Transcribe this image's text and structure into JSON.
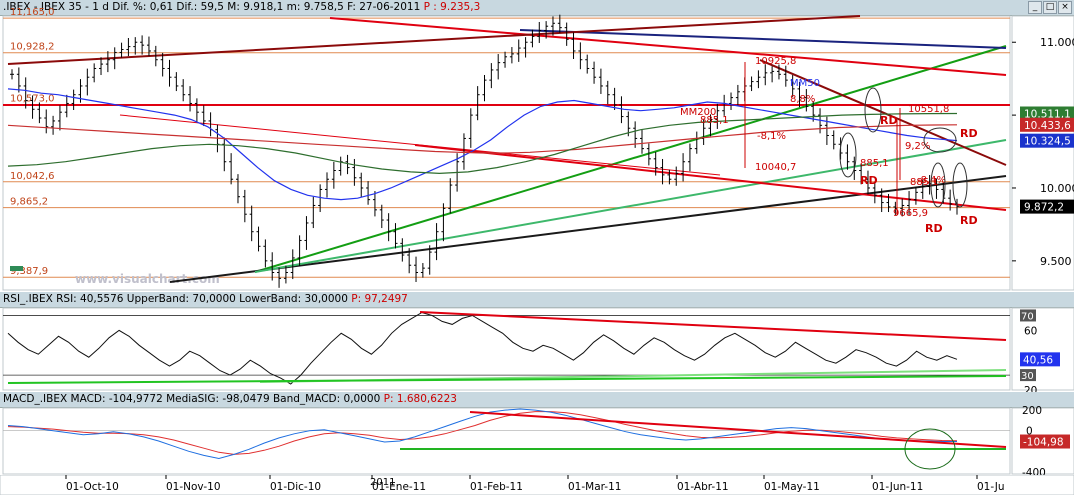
{
  "main_header": {
    "instrument": ".IBEX - IBEX 35 - 1 d Dif. %: 0,61 Dif.: 59,5 M: 9.918,1 m: 9.758,5 F: 27-06-2011",
    "extra": "P : 9.235,3"
  },
  "rsi_header": {
    "text": "RSI_.IBEX RSI: 40,5576 UpperBand: 70,0000 LowerBand: 30,0000",
    "extra": "P: 97,2497"
  },
  "macd_header": {
    "text": "MACD_.IBEX MACD: -104,9772 MediaSIG: -98,0479 Band_MACD: 0,0000",
    "extra": "P: 1.680,6223"
  },
  "window_buttons": [
    "_",
    "□",
    "×"
  ],
  "colors": {
    "pane_bg": "#ffffff",
    "header_bg": "#c8d8e0",
    "price": "#000000",
    "level_line": "#e08a50",
    "red_line": "#e00010",
    "green_line": "#139e13",
    "light_green": "#3db86b",
    "dark_line": "#1a1a1a",
    "blue_line": "#1a33cc",
    "navy_line": "#1a237e",
    "maroon_line": "#8b0a0a",
    "mm50": "#2233ee",
    "mm200": "#c83030",
    "ma_green": "#2e6e2e",
    "rsi_line": "#111111",
    "macd": "#1f6fe0",
    "signal": "#e03030",
    "watermark": "#c0c0cc"
  },
  "chart_data": {
    "type": "ohlc",
    "instrument": "IBEX 35",
    "watermark": "www.visualchart.com",
    "price_axis": {
      "range": [
        9300,
        11180
      ],
      "ticks": [
        {
          "value": 11000,
          "label": "11.000"
        },
        {
          "value": 10500,
          "label": "10.500"
        },
        {
          "value": 10000,
          "label": "10.000"
        },
        {
          "value": 9500,
          "label": "9.500"
        }
      ],
      "value_tags": [
        {
          "value": 10511,
          "label": "10.511,1",
          "bg": "#2e7d32"
        },
        {
          "value": 10433.6,
          "label": "10.433,6",
          "bg": "#c62828"
        },
        {
          "value": 10324.5,
          "label": "10.324,5",
          "bg": "#1a33cc"
        },
        {
          "value": 9872.2,
          "label": "9.872,2",
          "bg": "#000000"
        }
      ]
    },
    "levels": [
      {
        "value": 11165,
        "label": "11,165,0"
      },
      {
        "value": 10928.2,
        "label": "10,928,2"
      },
      {
        "value": 10573,
        "label": "10,573,0"
      },
      {
        "value": 10042.6,
        "label": "10,042,6"
      },
      {
        "value": 9865.2,
        "label": "9,865,2"
      },
      {
        "value": 9387.9,
        "label": "9,387,9"
      }
    ],
    "dates": {
      "labels": [
        "01-Oct-10",
        "01-Nov-10",
        "01-Dic-10",
        "01-Ene-11",
        "01-Feb-11",
        "01-Mar-11",
        "01-Abr-11",
        "01-May-11",
        "01-Jun-11",
        "01-Ju"
      ],
      "year_marker": "2011"
    },
    "close": [
      10780,
      10700,
      10600,
      10540,
      10480,
      10420,
      10460,
      10520,
      10580,
      10640,
      10700,
      10760,
      10820,
      10850,
      10880,
      10930,
      10950,
      10970,
      11000,
      10980,
      10940,
      10880,
      10820,
      10760,
      10700,
      10640,
      10580,
      10520,
      10460,
      10400,
      10300,
      10180,
      10060,
      9940,
      9820,
      9700,
      9600,
      9500,
      9420,
      9380,
      9420,
      9520,
      9640,
      9760,
      9880,
      9990,
      10060,
      10120,
      10180,
      10140,
      10070,
      10000,
      9920,
      9850,
      9780,
      9700,
      9620,
      9540,
      9470,
      9420,
      9450,
      9560,
      9700,
      9860,
      10020,
      10180,
      10340,
      10500,
      10640,
      10740,
      10810,
      10860,
      10900,
      10920,
      10960,
      11000,
      11040,
      11080,
      11110,
      11130,
      11100,
      11020,
      10940,
      10880,
      10820,
      10760,
      10700,
      10640,
      10570,
      10490,
      10410,
      10340,
      10270,
      10200,
      10140,
      10090,
      10060,
      10100,
      10180,
      10270,
      10340,
      10410,
      10470,
      10530,
      10580,
      10620,
      10660,
      10700,
      10730,
      10760,
      10790,
      10800,
      10780,
      10740,
      10680,
      10620,
      10560,
      10500,
      10430,
      10360,
      10300,
      10240,
      10180,
      10120,
      10060,
      10000,
      9950,
      9900,
      9870,
      9860,
      9880,
      9920,
      9970,
      10010,
      10030,
      9990,
      9930,
      9890,
      9872
    ],
    "mm50": [
      10680,
      10670,
      10650,
      10640,
      10620,
      10600,
      10580,
      10560,
      10540,
      10520,
      10500,
      10470,
      10420,
      10340,
      10240,
      10140,
      10050,
      9990,
      9950,
      9930,
      9920,
      9930,
      9960,
      10000,
      10050,
      10100,
      10150,
      10200,
      10260,
      10330,
      10420,
      10500,
      10560,
      10590,
      10600,
      10580,
      10560,
      10540,
      10530,
      10540,
      10550,
      10570,
      10590,
      10580,
      10560,
      10540,
      10520,
      10500,
      10480,
      10460,
      10440,
      10420,
      10400,
      10380,
      10360,
      10345,
      10335,
      10325
    ],
    "mm200": [
      10430,
      10420,
      10410,
      10400,
      10390,
      10380,
      10370,
      10360,
      10350,
      10340,
      10330,
      10320,
      10310,
      10300,
      10290,
      10280,
      10270,
      10260,
      10250,
      10245,
      10240,
      10240,
      10245,
      10255,
      10265,
      10280,
      10295,
      10310,
      10325,
      10340,
      10355,
      10370,
      10385,
      10395,
      10405,
      10415,
      10420,
      10425,
      10430,
      10432,
      10433.6
    ],
    "ma_green": [
      10150,
      10160,
      10180,
      10210,
      10240,
      10270,
      10290,
      10300,
      10290,
      10270,
      10240,
      10200,
      10160,
      10130,
      10110,
      10100,
      10110,
      10140,
      10180,
      10230,
      10290,
      10350,
      10400,
      10430,
      10450,
      10460,
      10470,
      10480,
      10490,
      10500,
      10505,
      10508,
      10510,
      10511
    ],
    "lines": [
      {
        "name": "support-green-long",
        "color": "#139e13"
      },
      {
        "name": "support-dark-long",
        "color": "#1a1a1a"
      },
      {
        "name": "support-lightgreen",
        "color": "#3db86b"
      },
      {
        "name": "resistance-red-top",
        "color": "#e00010"
      },
      {
        "name": "channel-red-low",
        "color": "#e00010"
      },
      {
        "name": "red-horizontal",
        "color": "#e00010"
      },
      {
        "name": "trend-navy",
        "color": "#1a237e"
      },
      {
        "name": "trend-maroon-top",
        "color": "#8b0a0a"
      },
      {
        "name": "trend-maroon-short",
        "color": "#8b0a0a"
      }
    ],
    "annotations": [
      {
        "text": "10925,8",
        "color": "#cc0000"
      },
      {
        "text": "MM50",
        "color": "#2233ee"
      },
      {
        "text": "MM200",
        "color": "#cc0000"
      },
      {
        "text": "885,1",
        "color": "#cc0000"
      },
      {
        "text": "-8,1%",
        "color": "#cc0000"
      },
      {
        "text": "10040,7",
        "color": "#cc0000"
      },
      {
        "text": "8,8%",
        "color": "#cc0000"
      },
      {
        "text": "885,1",
        "color": "#cc0000"
      },
      {
        "text": "10551,8",
        "color": "#cc0000"
      },
      {
        "text": "9,2%",
        "color": "#cc0000"
      },
      {
        "text": "885,1",
        "color": "#cc0000"
      },
      {
        "text": "-8,4%",
        "color": "#cc0000"
      },
      {
        "text": "9665,9",
        "color": "#cc0000"
      },
      {
        "text": "RD",
        "color": "#cc0000"
      },
      {
        "text": "RD",
        "color": "#cc0000"
      },
      {
        "text": "RD",
        "color": "#cc0000"
      },
      {
        "text": "RD",
        "color": "#cc0000"
      },
      {
        "text": "RD",
        "color": "#cc0000"
      }
    ],
    "rsi": {
      "range": [
        20,
        75
      ],
      "ticks": [
        {
          "value": 60,
          "label": "60"
        },
        {
          "value": 40,
          "label": "40"
        },
        {
          "value": 20,
          "label": "20"
        }
      ],
      "bands": [
        {
          "value": 70,
          "label": "70"
        },
        {
          "value": 30,
          "label": "30"
        }
      ],
      "current": {
        "value": 40.56,
        "label": "40,56"
      },
      "values": [
        58,
        52,
        47,
        44,
        50,
        56,
        52,
        46,
        42,
        48,
        55,
        60,
        56,
        50,
        45,
        40,
        36,
        40,
        46,
        43,
        38,
        33,
        30,
        34,
        40,
        36,
        31,
        28,
        24,
        30,
        38,
        45,
        52,
        58,
        54,
        48,
        44,
        50,
        58,
        64,
        68,
        72,
        70,
        66,
        64,
        68,
        70,
        66,
        62,
        58,
        52,
        48,
        46,
        50,
        48,
        44,
        40,
        45,
        52,
        57,
        53,
        48,
        44,
        50,
        55,
        52,
        47,
        43,
        40,
        44,
        50,
        55,
        58,
        54,
        50,
        45,
        42,
        46,
        52,
        48,
        44,
        40,
        38,
        42,
        47,
        45,
        42,
        38,
        36,
        40,
        46,
        42,
        40,
        43,
        40.56
      ]
    },
    "macd": {
      "range": [
        -420,
        220
      ],
      "ticks": [
        {
          "value": 200,
          "label": "200"
        },
        {
          "value": -400,
          "label": "-400"
        }
      ],
      "zero": {
        "value": 0,
        "label": "0"
      },
      "current": {
        "value": -104.98,
        "label": "-104,98"
      },
      "macd_values": [
        50,
        40,
        20,
        0,
        -20,
        -40,
        -30,
        -10,
        -30,
        -60,
        -100,
        -150,
        -200,
        -240,
        -270,
        -230,
        -180,
        -120,
        -70,
        -30,
        0,
        10,
        -20,
        -50,
        -80,
        -110,
        -100,
        -60,
        -10,
        40,
        90,
        140,
        180,
        200,
        210,
        200,
        180,
        150,
        110,
        70,
        30,
        -10,
        -40,
        -60,
        -80,
        -90,
        -80,
        -60,
        -40,
        -20,
        0,
        20,
        30,
        20,
        0,
        -20,
        -40,
        -60,
        -80,
        -90,
        -95,
        -100,
        -105,
        -104.98
      ],
      "signal_values": [
        40,
        35,
        25,
        15,
        0,
        -15,
        -25,
        -25,
        -28,
        -40,
        -60,
        -90,
        -130,
        -170,
        -210,
        -230,
        -220,
        -190,
        -150,
        -100,
        -60,
        -30,
        -20,
        -30,
        -45,
        -70,
        -85,
        -80,
        -60,
        -30,
        10,
        50,
        100,
        140,
        170,
        185,
        185,
        175,
        155,
        125,
        95,
        60,
        30,
        0,
        -25,
        -50,
        -65,
        -70,
        -65,
        -55,
        -40,
        -20,
        -5,
        5,
        5,
        -5,
        -20,
        -35,
        -55,
        -70,
        -80,
        -88,
        -95,
        -98.05
      ]
    }
  }
}
